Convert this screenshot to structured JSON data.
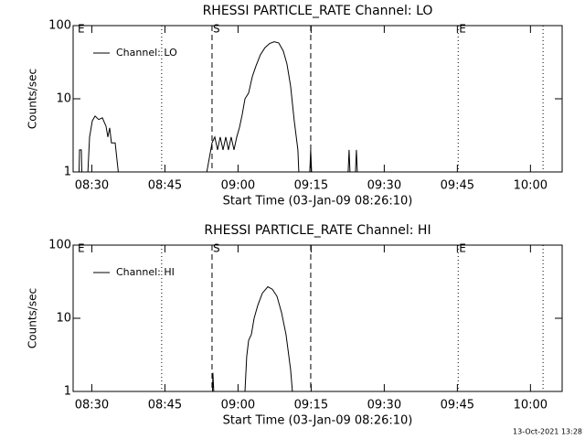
{
  "chart_data": [
    {
      "type": "line",
      "title": "RHESSI PARTICLE_RATE Channel: LO",
      "xlabel": "Start Time (03-Jan-09 08:26:10)",
      "ylabel": "Counts/sec",
      "x": [
        "08:27:17",
        "08:27:29",
        "08:27:51",
        "08:28:02",
        "08:28:59",
        "08:29:32",
        "08:30:06",
        "08:30:40",
        "08:31:25",
        "08:32:10",
        "08:32:55",
        "08:33:18",
        "08:33:40",
        "08:34:02",
        "08:34:48",
        "08:35:55",
        "08:52:47",
        "08:54:40",
        "08:55:14",
        "08:55:48",
        "08:56:21",
        "08:56:55",
        "08:57:29",
        "08:58:02",
        "08:58:36",
        "08:59:10",
        "08:59:44",
        "09:00:17",
        "09:00:51",
        "09:01:25",
        "09:02:10",
        "09:02:55",
        "09:03:40",
        "09:04:36",
        "09:05:32",
        "09:06:29",
        "09:07:25",
        "09:08:21",
        "09:09:17",
        "09:10:02",
        "09:10:47",
        "09:11:32",
        "09:12:17",
        "09:12:40",
        "09:14:32",
        "09:14:55",
        "09:15:17",
        "09:22:25",
        "09:22:47",
        "09:23:10",
        "09:23:55",
        "09:24:17",
        "09:24:40"
      ],
      "series": [
        {
          "name": "Channel: LO",
          "color": "#000000",
          "values": [
            0.5,
            2,
            2,
            0.5,
            0.5,
            3,
            5,
            5.8,
            5.2,
            5.5,
            4.2,
            3,
            4,
            2.5,
            2.5,
            0.5,
            0.5,
            2.5,
            3,
            2,
            3,
            2,
            3,
            2,
            3,
            2,
            3,
            4,
            6,
            10,
            12,
            20,
            28,
            40,
            50,
            57,
            60,
            58,
            45,
            30,
            15,
            5,
            2,
            0.5,
            0.5,
            2,
            0.5,
            0.5,
            2,
            0.5,
            0.5,
            2,
            0.5
          ]
        }
      ],
      "xlim": [
        "08:26:10",
        "10:06:30"
      ],
      "xticks": [
        "08:30",
        "08:45",
        "09:00",
        "09:15",
        "09:30",
        "09:45",
        "10:00"
      ],
      "ylim": [
        1,
        100
      ],
      "yticks": [
        1,
        10,
        100
      ],
      "log_y": true,
      "legend": "upper left",
      "lines": [
        {
          "time": "08:44:20",
          "style": "dotted"
        },
        {
          "time": "08:54:40",
          "style": "dashed"
        },
        {
          "time": "09:14:55",
          "style": "dashed"
        },
        {
          "time": "09:45:10",
          "style": "dotted"
        },
        {
          "time": "10:02:35",
          "style": "dotted"
        }
      ],
      "events": [
        {
          "time": "08:26:55",
          "label": "E"
        },
        {
          "time": "08:54:40",
          "label": "S"
        },
        {
          "time": "09:45:10",
          "label": "E"
        }
      ]
    },
    {
      "type": "line",
      "title": "RHESSI PARTICLE_RATE Channel: HI",
      "xlabel": "Start Time (03-Jan-09 08:26:10)",
      "ylabel": "Counts/sec",
      "x": [
        "08:54:40",
        "08:54:51",
        "08:55:14",
        "08:59:32",
        "08:59:44",
        "09:01:25",
        "09:01:47",
        "09:02:10",
        "09:02:44",
        "09:03:18",
        "09:04:03",
        "09:04:59",
        "09:06:07",
        "09:07:02",
        "09:07:59",
        "09:08:55",
        "09:09:51",
        "09:10:47",
        "09:11:32"
      ],
      "series": [
        {
          "name": "Channel: HI",
          "color": "#000000",
          "values": [
            0.5,
            1.8,
            0.5,
            0.5,
            1,
            1,
            3,
            5,
            6,
            10,
            15,
            22,
            27,
            25,
            20,
            12,
            6,
            2,
            0.5
          ]
        }
      ],
      "xlim": [
        "08:26:10",
        "10:06:30"
      ],
      "xticks": [
        "08:30",
        "08:45",
        "09:00",
        "09:15",
        "09:30",
        "09:45",
        "10:00"
      ],
      "ylim": [
        1,
        100
      ],
      "yticks": [
        1,
        10,
        100
      ],
      "log_y": true,
      "legend": "upper left",
      "lines": [
        {
          "time": "08:44:20",
          "style": "dotted"
        },
        {
          "time": "08:54:40",
          "style": "dashed"
        },
        {
          "time": "09:14:55",
          "style": "dashed"
        },
        {
          "time": "09:45:10",
          "style": "dotted"
        },
        {
          "time": "10:02:35",
          "style": "dotted"
        }
      ],
      "events": [
        {
          "time": "08:26:55",
          "label": "E"
        },
        {
          "time": "08:54:40",
          "label": "S"
        },
        {
          "time": "09:45:10",
          "label": "E"
        }
      ]
    }
  ],
  "timestamp": "13-Oct-2021 13:28"
}
